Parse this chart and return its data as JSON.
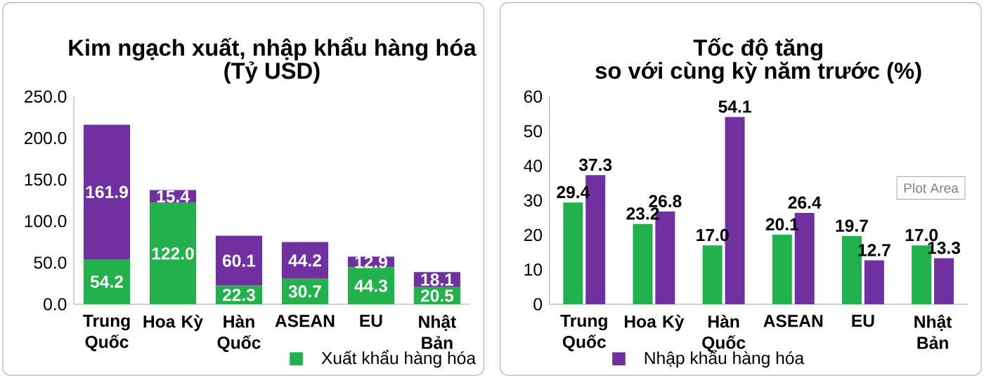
{
  "chart_data": [
    {
      "type": "bar",
      "title": "Kim ngạch xuất, nhập khẩu hàng hóa",
      "subtitle": "(Tỷ USD)",
      "categories": [
        "Trung Quốc",
        "Hoa Kỳ",
        "Hàn Quốc",
        "ASEAN",
        "EU",
        "Nhật Bản"
      ],
      "stacked": true,
      "legend": "bottom",
      "series": [
        {
          "name": "Xuất khẩu hàng hóa",
          "color": "#22b14c",
          "values": [
            54.2,
            122.0,
            22.3,
            30.7,
            44.3,
            20.5
          ],
          "value_labels": [
            "54.2",
            "122.0",
            "22.3",
            "30.7",
            "44.3",
            "20.5"
          ]
        },
        {
          "name": "Nhập khẩu hàng hóa",
          "color": "#7030a0",
          "values": [
            161.9,
            15.4,
            60.1,
            44.2,
            12.9,
            18.1
          ],
          "value_labels": [
            "161.9",
            "15.4",
            "60.1",
            "44.2",
            "12.9",
            "18.1"
          ]
        }
      ],
      "ylim": [
        0,
        250
      ],
      "yticks": [
        {
          "value": 0,
          "label": "0.0"
        },
        {
          "value": 50,
          "label": "50.0"
        },
        {
          "value": 100,
          "label": "100.0"
        },
        {
          "value": 150,
          "label": "150.0"
        },
        {
          "value": 200,
          "label": "200.0"
        },
        {
          "value": 250,
          "label": "250.0"
        }
      ]
    },
    {
      "type": "bar",
      "title": "Tốc độ tăng",
      "subtitle": "so với cùng kỳ năm trước (%)",
      "categories": [
        "Trung Quốc",
        "Hoa Kỳ",
        "Hàn Quốc",
        "ASEAN",
        "EU",
        "Nhật Bản"
      ],
      "annotations": [
        "Plot Area"
      ],
      "series": [
        {
          "color": "#22b14c",
          "values": [
            29.4,
            23.2,
            17.0,
            20.1,
            19.7,
            17.0
          ],
          "value_labels": [
            "29.4",
            "23.2",
            "17.0",
            "20.1",
            "19.7",
            "17.0"
          ]
        },
        {
          "color": "#7030a0",
          "values": [
            37.3,
            26.8,
            54.1,
            26.4,
            12.7,
            13.3
          ],
          "value_labels": [
            "37.3",
            "26.8",
            "54.1",
            "26.4",
            "12.7",
            "13.3"
          ]
        }
      ],
      "ylim": [
        0,
        60
      ],
      "yticks": [
        0,
        10,
        20,
        30,
        40,
        50,
        60
      ]
    }
  ]
}
